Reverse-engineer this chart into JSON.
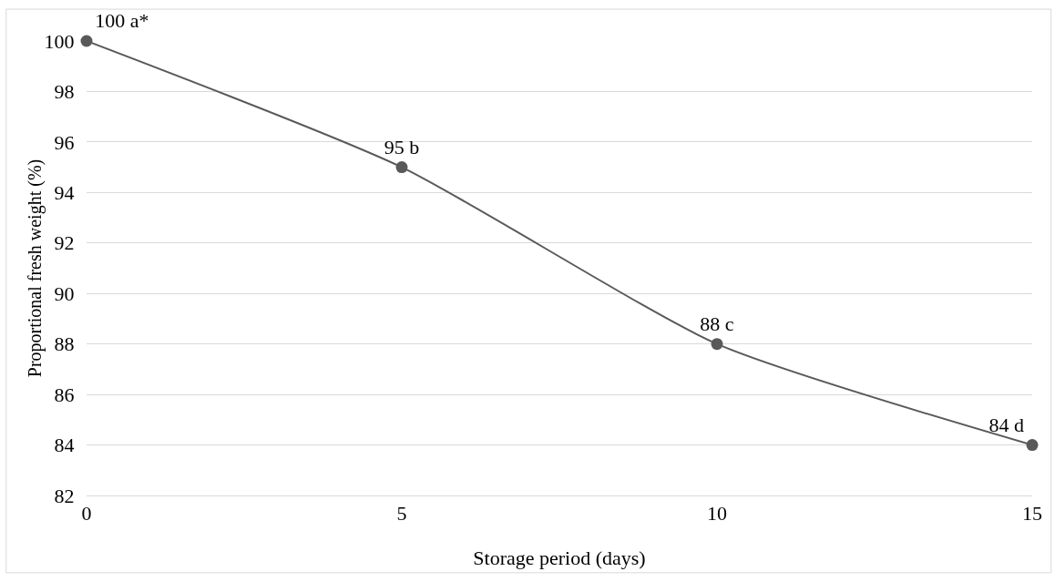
{
  "chart_data": {
    "type": "line",
    "xlabel": "Storage period (days)",
    "ylabel": "Proportional fresh weight (%)",
    "x": [
      0,
      5,
      10,
      15
    ],
    "series": [
      {
        "color": "#595959",
        "values": [
          100,
          95,
          88,
          84
        ],
        "value_labels": [
          "100 a*",
          "95 b",
          "88 c",
          "84 d"
        ]
      }
    ],
    "xlim": [
      0,
      15
    ],
    "xticks": [
      0,
      5,
      10,
      15
    ],
    "ylim": [
      82,
      100
    ],
    "yticks": [
      82,
      84,
      86,
      88,
      90,
      92,
      94,
      96,
      98,
      100
    ],
    "grid": "y",
    "marker": "circle",
    "line_style": "solid"
  }
}
